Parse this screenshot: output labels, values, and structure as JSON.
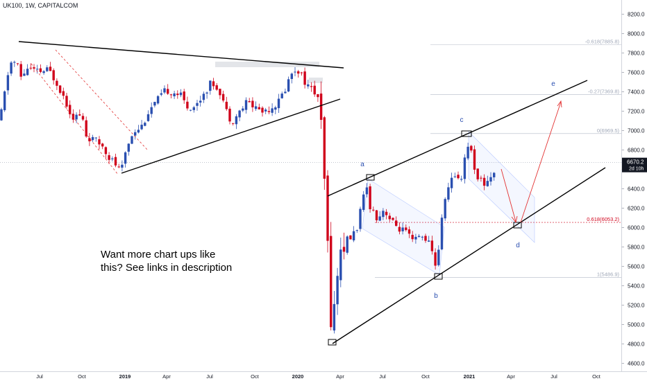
{
  "header": {
    "title": "UK100, 1W, CAPITALCOM"
  },
  "annotation": {
    "line1": "Want more chart ups like",
    "line2": "this? See links in description"
  },
  "chart_data": {
    "type": "candlestick",
    "y_axis": {
      "ticks": [
        "8200.0",
        "8000.0",
        "7800.0",
        "7600.0",
        "7400.0",
        "7200.0",
        "7000.0",
        "6800.0",
        "6600.0",
        "6400.0",
        "6200.0",
        "6000.0",
        "5800.0",
        "5600.0",
        "5400.0",
        "5200.0",
        "5000.0",
        "4800.0",
        "4600.0"
      ],
      "range": [
        4540,
        8250
      ],
      "side": "right"
    },
    "x_axis": {
      "ticks": [
        "Jul",
        "Oct",
        "2019",
        "Apr",
        "Jul",
        "Oct",
        "2020",
        "Apr",
        "Jul",
        "Oct",
        "2021",
        "Apr",
        "Jul",
        "Oct"
      ]
    },
    "last_price": {
      "value": "6670.2",
      "countdown": "2d 10h"
    },
    "fib_levels": [
      {
        "label": "-0.618(7885.8)",
        "value": 7885.8,
        "color": "#a0a8b8"
      },
      {
        "label": "-0.27(7369.8)",
        "value": 7369.8,
        "color": "#a0a8b8"
      },
      {
        "label": "0(6969.5)",
        "value": 6969.5,
        "color": "#a0a8b8"
      },
      {
        "label": "0.618(6053.2)",
        "value": 6053.2,
        "color": "#d0021b"
      },
      {
        "label": "1(5486.9)",
        "value": 5486.9,
        "color": "#a0a8b8"
      }
    ],
    "wave_labels": [
      "a",
      "b",
      "c",
      "d",
      "e"
    ],
    "colors": {
      "up": "#2a4fb0",
      "down": "#d0021b",
      "wave_label": "#2a4fb0",
      "trendline": "#000000",
      "projection": "#e23030"
    }
  }
}
